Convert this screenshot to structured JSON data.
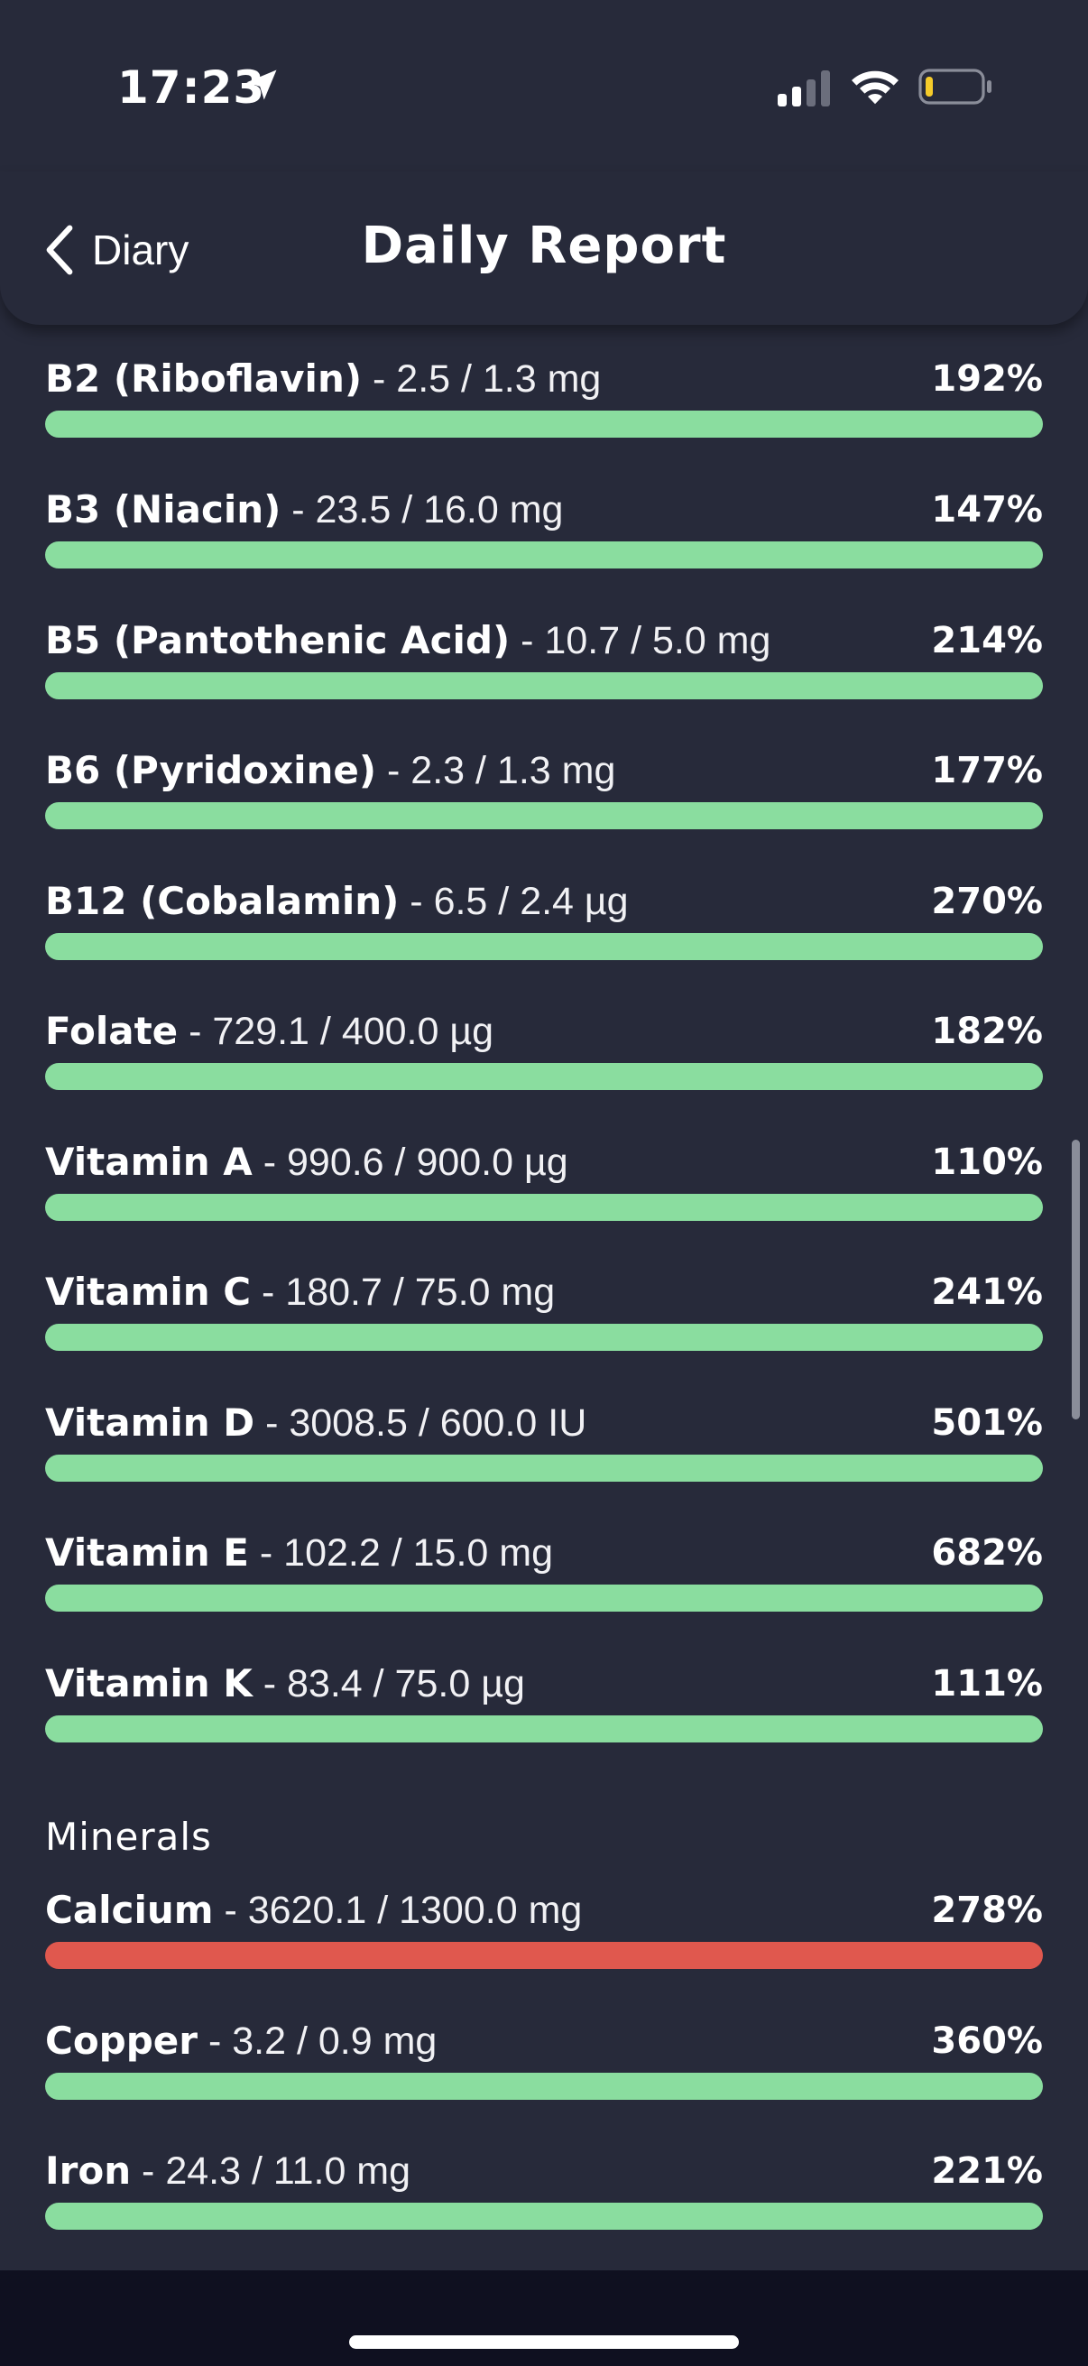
{
  "status_bar": {
    "time": "17:23",
    "icons": [
      "location-arrow-icon",
      "cellular-signal-icon",
      "wifi-icon",
      "battery-low-icon"
    ],
    "battery_color": "#f5cb2a"
  },
  "header": {
    "back_label": "Diary",
    "title": "Daily Report"
  },
  "colors": {
    "background": "#272a3a",
    "bar_ok": "#8add9f",
    "bar_over": "#e0584e",
    "bottom_bar": "#0f1020"
  },
  "vitamins": [
    {
      "name": "B2 (Riboflavin)",
      "amount": " - 2.5 / 1.3 mg",
      "percent": "192%",
      "status": "ok"
    },
    {
      "name": "B3 (Niacin)",
      "amount": " - 23.5 / 16.0 mg",
      "percent": "147%",
      "status": "ok"
    },
    {
      "name": "B5 (Pantothenic Acid)",
      "amount": " - 10.7 / 5.0 mg",
      "percent": "214%",
      "status": "ok"
    },
    {
      "name": "B6 (Pyridoxine)",
      "amount": " - 2.3 / 1.3 mg",
      "percent": "177%",
      "status": "ok"
    },
    {
      "name": "B12 (Cobalamin)",
      "amount": " - 6.5 / 2.4 µg",
      "percent": "270%",
      "status": "ok"
    },
    {
      "name": "Folate",
      "amount": " - 729.1 / 400.0 µg",
      "percent": "182%",
      "status": "ok"
    },
    {
      "name": "Vitamin A",
      "amount": " - 990.6 / 900.0 µg",
      "percent": "110%",
      "status": "ok"
    },
    {
      "name": "Vitamin C",
      "amount": " - 180.7 / 75.0 mg",
      "percent": "241%",
      "status": "ok"
    },
    {
      "name": "Vitamin D",
      "amount": " - 3008.5 / 600.0 IU",
      "percent": "501%",
      "status": "ok"
    },
    {
      "name": "Vitamin E",
      "amount": " - 102.2 / 15.0 mg",
      "percent": "682%",
      "status": "ok"
    },
    {
      "name": "Vitamin K",
      "amount": " - 83.4 / 75.0 µg",
      "percent": "111%",
      "status": "ok"
    }
  ],
  "minerals": {
    "title": "Minerals",
    "items": [
      {
        "name": "Calcium",
        "amount": " - 3620.1 / 1300.0 mg",
        "percent": "278%",
        "status": "over"
      },
      {
        "name": "Copper",
        "amount": " - 3.2 / 0.9 mg",
        "percent": "360%",
        "status": "ok"
      },
      {
        "name": "Iron",
        "amount": " - 24.3 / 11.0 mg",
        "percent": "221%",
        "status": "ok"
      }
    ]
  }
}
